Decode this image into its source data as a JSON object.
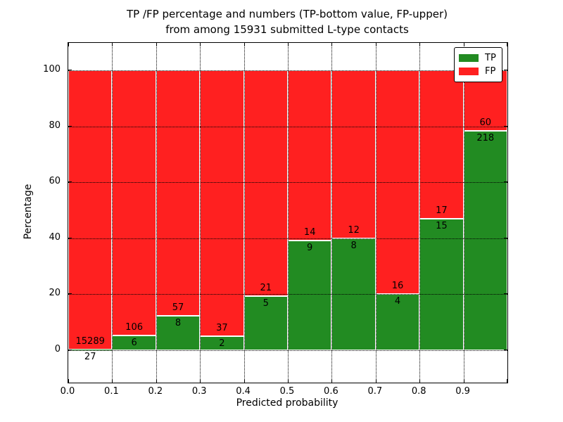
{
  "title": {
    "line1": "TP /FP percentage and numbers (TP-bottom value, FP-upper)",
    "line2": "from among 15931 submitted L-type contacts"
  },
  "axes": {
    "xlabel": "Predicted probability",
    "ylabel": "Percentage",
    "xtick_labels": [
      "0.0",
      "0.1",
      "0.2",
      "0.3",
      "0.4",
      "0.5",
      "0.6",
      "0.7",
      "0.8",
      "0.9"
    ],
    "ytick_labels": [
      "0",
      "20",
      "40",
      "60",
      "80",
      "100"
    ],
    "ytick_values": [
      0,
      20,
      40,
      60,
      80,
      100
    ]
  },
  "legend": {
    "items": [
      {
        "label": "TP",
        "color": "#228b22"
      },
      {
        "label": "FP",
        "color": "#ff2020"
      }
    ]
  },
  "colors": {
    "tp": "#228b22",
    "fp": "#ff2020",
    "bar_edge": "#ffffff",
    "grid": "#000000"
  },
  "chart_data": {
    "type": "bar",
    "stacked": true,
    "normalized": "percent_of_bin",
    "title": "TP /FP percentage and numbers (TP-bottom value, FP-upper) from among 15931 submitted L-type contacts",
    "xlabel": "Predicted probability",
    "ylabel": "Percentage",
    "bin_edges": [
      0.0,
      0.1,
      0.2,
      0.3,
      0.4,
      0.5,
      0.6,
      0.7,
      0.8,
      0.9,
      1.0
    ],
    "series": [
      {
        "name": "TP",
        "color": "#228b22",
        "values": [
          27,
          6,
          8,
          2,
          5,
          9,
          8,
          4,
          15,
          218
        ]
      },
      {
        "name": "FP",
        "color": "#ff2020",
        "values": [
          15289,
          106,
          57,
          37,
          21,
          14,
          12,
          16,
          17,
          60
        ]
      }
    ],
    "tp_percent_per_bin": [
      0.18,
      5.36,
      12.31,
      5.13,
      19.23,
      39.13,
      40.0,
      20.0,
      46.88,
      78.42
    ],
    "total_contacts": 15931,
    "ylim": [
      -11.6,
      109.8
    ],
    "yticks": [
      0,
      20,
      40,
      60,
      80,
      100
    ],
    "grid": true,
    "legend_position": "upper right"
  }
}
